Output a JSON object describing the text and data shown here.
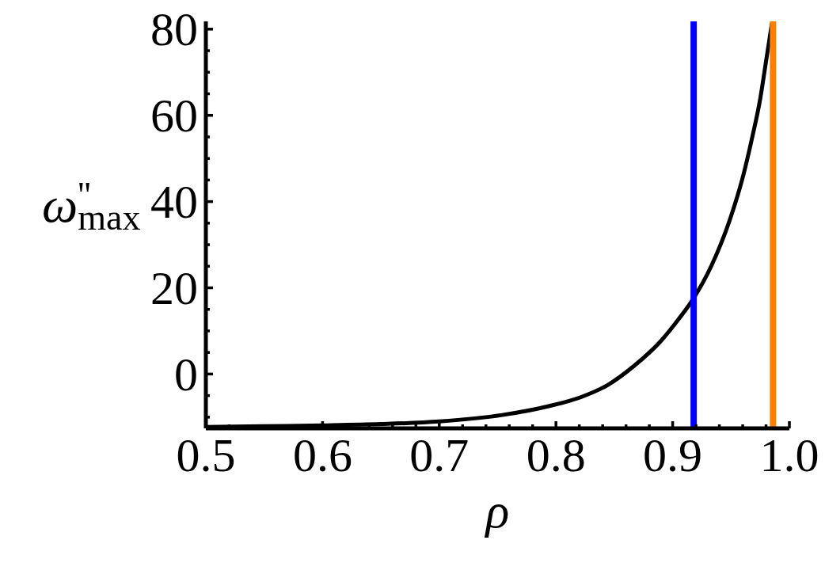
{
  "chart_data": {
    "type": "line",
    "xlabel": "ρ",
    "ylabel": "ω$^{''}$$_{max}$",
    "xlim": [
      0.5,
      1
    ],
    "ylim": [
      -12.6,
      81.8
    ],
    "xticks": [
      0.5,
      {
        "value": 0.52,
        "label": null
      },
      {
        "value": 0.54,
        "label": null
      },
      {
        "value": 0.56,
        "label": null
      },
      {
        "value": 0.58,
        "label": null
      },
      0.6,
      {
        "value": 0.62,
        "label": null
      },
      {
        "value": 0.64,
        "label": null
      },
      {
        "value": 0.66,
        "label": null
      },
      {
        "value": 0.68,
        "label": null
      },
      0.7,
      {
        "value": 0.72,
        "label": null
      },
      {
        "value": 0.74,
        "label": null
      },
      {
        "value": 0.76,
        "label": null
      },
      {
        "value": 0.78,
        "label": null
      },
      0.8,
      {
        "value": 0.82,
        "label": null
      },
      {
        "value": 0.84,
        "label": null
      },
      {
        "value": 0.86,
        "label": null
      },
      {
        "value": 0.88,
        "label": null
      },
      0.9,
      {
        "value": 0.92,
        "label": null
      },
      {
        "value": 0.94,
        "label": null
      },
      {
        "value": 0.96,
        "label": null
      },
      {
        "value": 0.98,
        "label": null
      },
      {
        "value": 1,
        "label": "1.0"
      }
    ],
    "yticks": [
      {
        "value": -10,
        "label": null
      },
      {
        "value": -5,
        "label": null
      },
      0,
      {
        "value": 5,
        "label": null
      },
      {
        "value": 10,
        "label": null
      },
      {
        "value": 15,
        "label": null
      },
      20,
      {
        "value": 25,
        "label": null
      },
      {
        "value": 30,
        "label": null
      },
      {
        "value": 35,
        "label": null
      },
      40,
      {
        "value": 45,
        "label": null
      },
      {
        "value": 50,
        "label": null
      },
      {
        "value": 55,
        "label": null
      },
      60,
      {
        "value": 65,
        "label": null
      },
      {
        "value": 70,
        "label": null
      },
      {
        "value": 75,
        "label": null
      },
      80
    ],
    "series": [
      {
        "color": "#000000",
        "x": [
          0.5,
          0.55,
          0.6,
          0.65,
          0.7,
          0.754,
          0.793,
          0.822,
          0.844,
          0.867,
          0.89,
          0.905,
          0.918,
          0.933,
          0.949,
          0.961,
          0.968,
          0.975,
          0.98,
          0.985
        ],
        "values": [
          -12.3,
          -12.1,
          -11.9,
          -11.6,
          -11.0,
          -9.5,
          -7.5,
          -5.3,
          -2.6,
          1.9,
          7.7,
          12.7,
          17.6,
          25.0,
          35.8,
          46.6,
          54.7,
          63.8,
          72.5,
          81.3
        ]
      }
    ],
    "marker": "none",
    "ref_lines": [
      {
        "axis": "x",
        "value": 0.918,
        "color": "#0000ff"
      },
      {
        "axis": "x",
        "value": 0.986,
        "color": "#ff8000"
      }
    ]
  }
}
